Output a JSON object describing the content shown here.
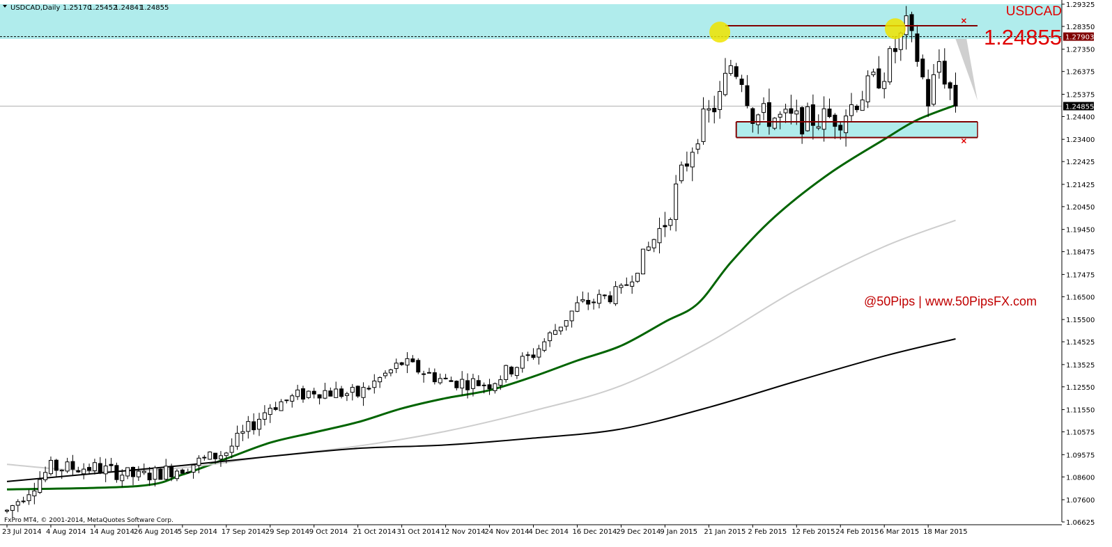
{
  "header": {
    "symbol": "USDCAD,Daily",
    "open": "1.25170",
    "high": "1.25452",
    "low": "1.24841",
    "close": "1.24855"
  },
  "footer": {
    "copyright": "FxPro MT4, © 2001-2014, MetaQuotes Software Corp."
  },
  "annotations": {
    "symbol_label": "USDCAD",
    "big_price": "1.24855",
    "watermark": "@50Pips | www.50PipsFX.com"
  },
  "colors": {
    "background": "#ffffff",
    "zone_fill": "#b0ecec",
    "ma_fast": "#006400",
    "ma_mid": "#cdcdcd",
    "ma_slow": "#000000",
    "level_line": "#800000",
    "highlight": "#f0e400",
    "annotation_red": "#e00000",
    "projection_fill": "#cfcfcf"
  },
  "chart_data": {
    "type": "candlestick",
    "y_axis": {
      "min": 1.06625,
      "max": 1.29325,
      "ticks": [
        1.29325,
        1.2835,
        1.2735,
        1.26375,
        1.25375,
        1.244,
        1.234,
        1.22425,
        1.21425,
        1.2045,
        1.1945,
        1.18475,
        1.17475,
        1.165,
        1.155,
        1.14525,
        1.13525,
        1.1255,
        1.1155,
        1.10575,
        1.09575,
        1.086,
        1.076,
        1.06625
      ],
      "tick_labels": [
        "1.29325",
        "1.28350",
        "1.27350",
        "1.26375",
        "1.25375",
        "1.24400",
        "1.23400",
        "1.22425",
        "1.21425",
        "1.20450",
        "1.19450",
        "1.18475",
        "1.17475",
        "1.16500",
        "1.15500",
        "1.14525",
        "1.13525",
        "1.12550",
        "1.11550",
        "1.10575",
        "1.09575",
        "1.08600",
        "1.07600",
        "1.06625"
      ]
    },
    "price_tags": [
      {
        "value": 1.27903,
        "label": "1.27903",
        "style": "level"
      },
      {
        "value": 1.24855,
        "label": "1.24855",
        "style": "current"
      }
    ],
    "x_axis": {
      "labels": [
        {
          "date": "23 Jul 2014",
          "index": 0
        },
        {
          "date": "4 Aug 2014",
          "index": 8
        },
        {
          "date": "14 Aug 2014",
          "index": 16
        },
        {
          "date": "26 Aug 2014",
          "index": 24
        },
        {
          "date": "5 Sep 2014",
          "index": 32
        },
        {
          "date": "17 Sep 2014",
          "index": 40
        },
        {
          "date": "29 Sep 2014",
          "index": 48
        },
        {
          "date": "9 Oct 2014",
          "index": 56
        },
        {
          "date": "21 Oct 2014",
          "index": 64
        },
        {
          "date": "31 Oct 2014",
          "index": 72
        },
        {
          "date": "12 Nov 2014",
          "index": 80
        },
        {
          "date": "24 Nov 2014",
          "index": 88
        },
        {
          "date": "4 Dec 2014",
          "index": 96
        },
        {
          "date": "16 Dec 2014",
          "index": 104
        },
        {
          "date": "29 Dec 2014",
          "index": 112
        },
        {
          "date": "9 Jan 2015",
          "index": 120
        },
        {
          "date": "21 Jan 2015",
          "index": 128
        },
        {
          "date": "2 Feb 2015",
          "index": 136
        },
        {
          "date": "12 Feb 2015",
          "index": 144
        },
        {
          "date": "24 Feb 2015",
          "index": 152
        },
        {
          "date": "6 Mar 2015",
          "index": 160
        },
        {
          "date": "18 Mar 2015",
          "index": 168
        }
      ]
    },
    "candle_points": [
      [
        0,
        1.071
      ],
      [
        8,
        1.09
      ],
      [
        16,
        1.09
      ],
      [
        24,
        1.086
      ],
      [
        32,
        1.09
      ],
      [
        40,
        1.097
      ],
      [
        48,
        1.117
      ],
      [
        56,
        1.124
      ],
      [
        64,
        1.122
      ],
      [
        72,
        1.136
      ],
      [
        80,
        1.128
      ],
      [
        88,
        1.127
      ],
      [
        96,
        1.14
      ],
      [
        104,
        1.161
      ],
      [
        112,
        1.167
      ],
      [
        120,
        1.198
      ],
      [
        126,
        1.238
      ],
      [
        130,
        1.252
      ],
      [
        132,
        1.267
      ],
      [
        134,
        1.262
      ],
      [
        136,
        1.245
      ],
      [
        144,
        1.242
      ],
      [
        152,
        1.244
      ],
      [
        160,
        1.264
      ],
      [
        164,
        1.283
      ],
      [
        166,
        1.27
      ],
      [
        168,
        1.251
      ],
      [
        170,
        1.268
      ],
      [
        173,
        1.25
      ]
    ],
    "moving_averages": [
      {
        "key": "ma_fast",
        "points": [
          [
            0,
            1.0805
          ],
          [
            24,
            1.082
          ],
          [
            32,
            1.087
          ],
          [
            40,
            1.094
          ],
          [
            48,
            1.101
          ],
          [
            56,
            1.1055
          ],
          [
            64,
            1.11
          ],
          [
            72,
            1.116
          ],
          [
            80,
            1.1205
          ],
          [
            88,
            1.124
          ],
          [
            96,
            1.13
          ],
          [
            104,
            1.137
          ],
          [
            112,
            1.1435
          ],
          [
            120,
            1.154
          ],
          [
            126,
            1.162
          ],
          [
            132,
            1.18
          ],
          [
            140,
            1.2
          ],
          [
            150,
            1.219
          ],
          [
            160,
            1.234
          ],
          [
            166,
            1.2425
          ],
          [
            173,
            1.249
          ]
        ]
      },
      {
        "key": "ma_mid",
        "points": [
          [
            0,
            1.0915
          ],
          [
            16,
            1.0885
          ],
          [
            32,
            1.09
          ],
          [
            48,
            1.095
          ],
          [
            64,
            1.0995
          ],
          [
            80,
            1.106
          ],
          [
            96,
            1.115
          ],
          [
            112,
            1.126
          ],
          [
            128,
            1.145
          ],
          [
            144,
            1.168
          ],
          [
            160,
            1.187
          ],
          [
            173,
            1.1985
          ]
        ]
      },
      {
        "key": "ma_slow",
        "points": [
          [
            0,
            1.084
          ],
          [
            16,
            1.0875
          ],
          [
            32,
            1.091
          ],
          [
            48,
            1.095
          ],
          [
            64,
            1.0985
          ],
          [
            80,
            1.1
          ],
          [
            96,
            1.103
          ],
          [
            112,
            1.107
          ],
          [
            128,
            1.1165
          ],
          [
            144,
            1.128
          ],
          [
            160,
            1.139
          ],
          [
            173,
            1.1465
          ]
        ]
      }
    ],
    "zones": [
      {
        "name": "top-zone",
        "from": 1.278,
        "to": 1.29325
      },
      {
        "name": "support-zone",
        "from": 1.2348,
        "to": 1.2417
      }
    ],
    "levels": [
      {
        "value": 1.2838,
        "from_index": 131,
        "to_index": 177
      },
      {
        "value": 1.2417,
        "from_index": 133,
        "to_index": 177
      },
      {
        "value": 1.2348,
        "from_index": 133,
        "to_index": 177
      }
    ],
    "highlights": [
      {
        "index": 130,
        "value": 1.281
      },
      {
        "index": 162,
        "value": 1.2825
      }
    ],
    "markers": [
      {
        "index": 174,
        "value": 1.286
      },
      {
        "index": 174,
        "value": 1.2333
      }
    ],
    "projection": [
      [
        173,
        1.278
      ],
      [
        177,
        1.251
      ],
      [
        175,
        1.278
      ]
    ]
  }
}
